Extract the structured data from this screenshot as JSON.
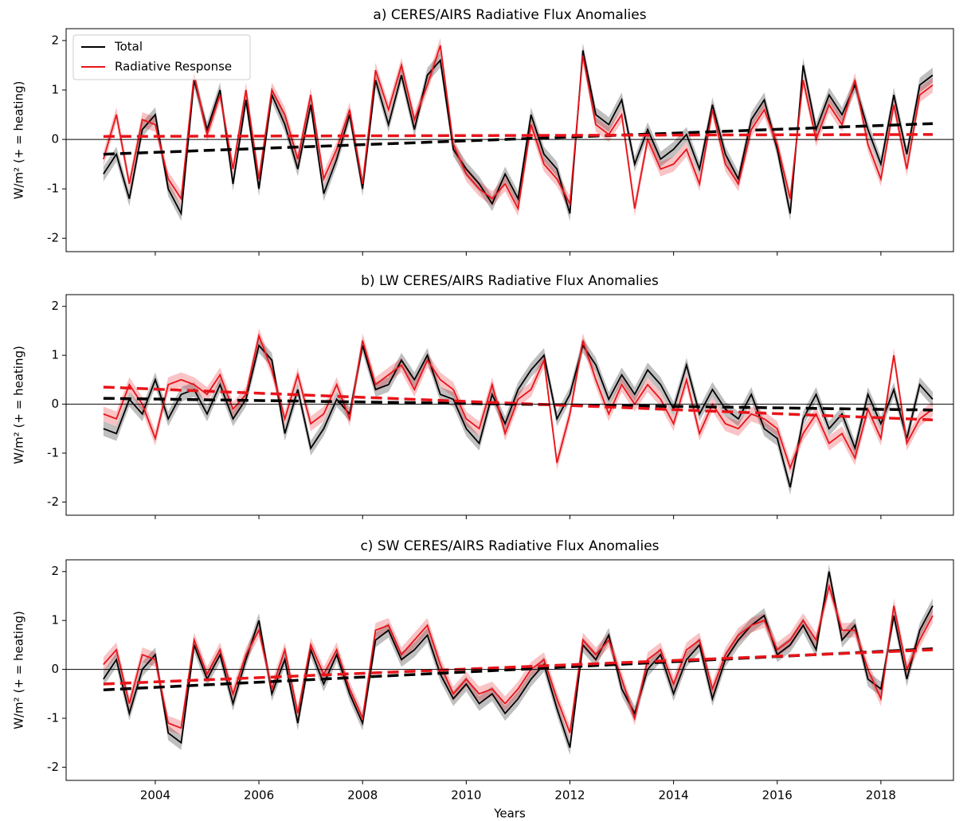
{
  "chart_data": [
    {
      "type": "line",
      "title": "a) CERES/AIRS Radiative Flux Anomalies",
      "ylabel": "W/m² (+ = heating)",
      "legend": "upper left",
      "x": [
        2003.0,
        2003.25,
        2003.5,
        2003.75,
        2004.0,
        2004.25,
        2004.5,
        2004.75,
        2005.0,
        2005.25,
        2005.5,
        2005.75,
        2006.0,
        2006.25,
        2006.5,
        2006.75,
        2007.0,
        2007.25,
        2007.5,
        2007.75,
        2008.0,
        2008.25,
        2008.5,
        2008.75,
        2009.0,
        2009.25,
        2009.5,
        2009.75,
        2010.0,
        2010.25,
        2010.5,
        2010.75,
        2011.0,
        2011.25,
        2011.5,
        2011.75,
        2012.0,
        2012.25,
        2012.5,
        2012.75,
        2013.0,
        2013.25,
        2013.5,
        2013.75,
        2014.0,
        2014.25,
        2014.5,
        2014.75,
        2015.0,
        2015.25,
        2015.5,
        2015.75,
        2016.0,
        2016.25,
        2016.5,
        2016.75,
        2017.0,
        2017.25,
        2017.5,
        2017.75,
        2018.0,
        2018.25,
        2018.5,
        2018.75,
        2019.0
      ],
      "series": [
        {
          "name": "Total",
          "color": "#000000",
          "spread": 0.15,
          "trend": [
            -0.3,
            0.32
          ],
          "values": [
            -0.7,
            -0.3,
            -1.2,
            0.2,
            0.5,
            -1.0,
            -1.5,
            1.2,
            0.2,
            1.0,
            -0.9,
            0.8,
            -1.0,
            0.9,
            0.3,
            -0.6,
            0.7,
            -1.1,
            -0.4,
            0.5,
            -1.0,
            1.2,
            0.3,
            1.3,
            0.2,
            1.3,
            1.6,
            -0.2,
            -0.6,
            -0.9,
            -1.3,
            -0.7,
            -1.2,
            0.5,
            -0.3,
            -0.6,
            -1.5,
            1.8,
            0.5,
            0.3,
            0.8,
            -0.5,
            0.2,
            -0.4,
            -0.2,
            0.1,
            -0.6,
            0.7,
            -0.3,
            -0.8,
            0.4,
            0.8,
            -0.2,
            -1.5,
            1.5,
            0.2,
            0.9,
            0.5,
            1.1,
            0.2,
            -0.5,
            0.9,
            -0.3,
            1.1,
            1.3
          ]
        },
        {
          "name": "Radiative Response",
          "color": "#e8141a",
          "spread": 0.15,
          "trend": [
            0.06,
            0.1
          ],
          "values": [
            -0.4,
            0.5,
            -0.9,
            0.4,
            0.3,
            -0.8,
            -1.2,
            1.3,
            0.1,
            0.9,
            -0.6,
            1.0,
            -0.8,
            1.0,
            0.5,
            -0.4,
            0.9,
            -0.8,
            -0.2,
            0.6,
            -0.9,
            1.4,
            0.6,
            1.5,
            0.4,
            1.1,
            1.9,
            -0.1,
            -0.7,
            -1.0,
            -1.2,
            -0.9,
            -1.4,
            0.3,
            -0.5,
            -0.8,
            -1.3,
            1.7,
            0.3,
            0.1,
            0.5,
            -1.4,
            0.0,
            -0.6,
            -0.5,
            -0.2,
            -0.9,
            0.6,
            -0.5,
            -0.9,
            0.2,
            0.6,
            -0.1,
            -1.2,
            1.2,
            0.0,
            0.7,
            0.3,
            1.2,
            -0.1,
            -0.8,
            0.7,
            -0.6,
            0.9,
            1.1
          ]
        }
      ],
      "trend_x": [
        2003.0,
        2019.0
      ],
      "hline": 0,
      "xlim": [
        2002.28,
        2019.4
      ],
      "xticks": [
        2004,
        2006,
        2008,
        2010,
        2012,
        2014,
        2016,
        2018
      ],
      "show_xtick_labels": false,
      "ylim": [
        -2.27,
        2.24
      ],
      "yticks": [
        -2,
        -1,
        0,
        1,
        2
      ]
    },
    {
      "type": "line",
      "title": "b) LW CERES/AIRS Radiative Flux Anomalies",
      "ylabel": "W/m² (+ = heating)",
      "x": [
        2003.0,
        2003.25,
        2003.5,
        2003.75,
        2004.0,
        2004.25,
        2004.5,
        2004.75,
        2005.0,
        2005.25,
        2005.5,
        2005.75,
        2006.0,
        2006.25,
        2006.5,
        2006.75,
        2007.0,
        2007.25,
        2007.5,
        2007.75,
        2008.0,
        2008.25,
        2008.5,
        2008.75,
        2009.0,
        2009.25,
        2009.5,
        2009.75,
        2010.0,
        2010.25,
        2010.5,
        2010.75,
        2011.0,
        2011.25,
        2011.5,
        2011.75,
        2012.0,
        2012.25,
        2012.5,
        2012.75,
        2013.0,
        2013.25,
        2013.5,
        2013.75,
        2014.0,
        2014.25,
        2014.5,
        2014.75,
        2015.0,
        2015.25,
        2015.5,
        2015.75,
        2016.0,
        2016.25,
        2016.5,
        2016.75,
        2017.0,
        2017.25,
        2017.5,
        2017.75,
        2018.0,
        2018.25,
        2018.5,
        2018.75,
        2019.0
      ],
      "series": [
        {
          "color": "#000000",
          "spread": 0.15,
          "trend": [
            0.12,
            -0.12
          ],
          "values": [
            -0.5,
            -0.6,
            0.1,
            -0.2,
            0.5,
            -0.3,
            0.2,
            0.3,
            -0.2,
            0.4,
            -0.3,
            0.1,
            1.2,
            0.9,
            -0.6,
            0.3,
            -0.9,
            -0.5,
            0.1,
            -0.2,
            1.2,
            0.3,
            0.4,
            0.9,
            0.5,
            1.0,
            0.2,
            0.1,
            -0.5,
            -0.8,
            0.2,
            -0.4,
            0.3,
            0.7,
            1.0,
            -0.3,
            0.2,
            1.2,
            0.8,
            0.1,
            0.6,
            0.2,
            0.7,
            0.4,
            -0.1,
            0.8,
            -0.2,
            0.3,
            -0.1,
            -0.3,
            0.2,
            -0.5,
            -0.7,
            -1.7,
            -0.3,
            0.2,
            -0.5,
            -0.2,
            -0.9,
            0.2,
            -0.4,
            0.3,
            -0.7,
            0.4,
            0.1
          ]
        },
        {
          "color": "#e8141a",
          "spread": 0.15,
          "trend": [
            0.35,
            -0.32
          ],
          "values": [
            -0.2,
            -0.3,
            0.4,
            0.0,
            -0.7,
            0.4,
            0.5,
            0.4,
            0.2,
            0.6,
            -0.1,
            0.2,
            1.4,
            0.7,
            -0.3,
            0.6,
            -0.4,
            -0.2,
            0.4,
            -0.3,
            1.3,
            0.4,
            0.6,
            0.8,
            0.3,
            0.9,
            0.5,
            0.3,
            -0.3,
            -0.5,
            0.4,
            -0.6,
            0.1,
            0.3,
            0.9,
            -1.2,
            -0.2,
            1.3,
            0.5,
            -0.2,
            0.4,
            0.0,
            0.4,
            0.1,
            -0.4,
            0.5,
            -0.6,
            0.0,
            -0.4,
            -0.5,
            -0.2,
            -0.3,
            -0.5,
            -1.3,
            -0.6,
            -0.2,
            -0.8,
            -0.6,
            -1.1,
            -0.1,
            -0.7,
            1.0,
            -0.8,
            -0.3,
            -0.1
          ]
        }
      ],
      "trend_x": [
        2003.0,
        2019.0
      ],
      "hline": 0,
      "xlim": [
        2002.28,
        2019.4
      ],
      "xticks": [
        2004,
        2006,
        2008,
        2010,
        2012,
        2014,
        2016,
        2018
      ],
      "show_xtick_labels": false,
      "ylim": [
        -2.27,
        2.24
      ],
      "yticks": [
        -2,
        -1,
        0,
        1,
        2
      ]
    },
    {
      "type": "line",
      "title": "c) SW CERES/AIRS Radiative Flux Anomalies",
      "ylabel": "W/m² (+ = heating)",
      "xlabel": "Years",
      "x": [
        2003.0,
        2003.25,
        2003.5,
        2003.75,
        2004.0,
        2004.25,
        2004.5,
        2004.75,
        2005.0,
        2005.25,
        2005.5,
        2005.75,
        2006.0,
        2006.25,
        2006.5,
        2006.75,
        2007.0,
        2007.25,
        2007.5,
        2007.75,
        2008.0,
        2008.25,
        2008.5,
        2008.75,
        2009.0,
        2009.25,
        2009.5,
        2009.75,
        2010.0,
        2010.25,
        2010.5,
        2010.75,
        2011.0,
        2011.25,
        2011.5,
        2011.75,
        2012.0,
        2012.25,
        2012.5,
        2012.75,
        2013.0,
        2013.25,
        2013.5,
        2013.75,
        2014.0,
        2014.25,
        2014.5,
        2014.75,
        2015.0,
        2015.25,
        2015.5,
        2015.75,
        2016.0,
        2016.25,
        2016.5,
        2016.75,
        2017.0,
        2017.25,
        2017.5,
        2017.75,
        2018.0,
        2018.25,
        2018.5,
        2018.75,
        2019.0
      ],
      "series": [
        {
          "color": "#000000",
          "spread": 0.15,
          "trend": [
            -0.42,
            0.42
          ],
          "values": [
            -0.2,
            0.2,
            -0.9,
            0.0,
            0.3,
            -1.3,
            -1.5,
            0.5,
            -0.2,
            0.3,
            -0.7,
            0.2,
            1.0,
            -0.5,
            0.2,
            -1.1,
            0.4,
            -0.3,
            0.3,
            -0.5,
            -1.1,
            0.6,
            0.8,
            0.2,
            0.4,
            0.7,
            -0.1,
            -0.6,
            -0.3,
            -0.7,
            -0.5,
            -0.9,
            -0.6,
            -0.2,
            0.1,
            -0.8,
            -1.6,
            0.5,
            0.2,
            0.7,
            -0.4,
            -0.9,
            0.0,
            0.3,
            -0.5,
            0.2,
            0.5,
            -0.6,
            0.2,
            0.6,
            0.9,
            1.1,
            0.3,
            0.5,
            0.9,
            0.4,
            2.0,
            0.6,
            0.9,
            -0.2,
            -0.4,
            1.1,
            -0.2,
            0.8,
            1.3
          ]
        },
        {
          "color": "#e8141a",
          "spread": 0.15,
          "trend": [
            -0.3,
            0.4
          ],
          "values": [
            0.1,
            0.4,
            -0.7,
            0.3,
            0.2,
            -1.1,
            -1.2,
            0.6,
            -0.1,
            0.4,
            -0.5,
            0.3,
            0.8,
            -0.4,
            0.4,
            -0.9,
            0.5,
            -0.1,
            0.4,
            -0.4,
            -1.0,
            0.8,
            0.9,
            0.3,
            0.6,
            0.9,
            0.1,
            -0.5,
            -0.2,
            -0.5,
            -0.4,
            -0.7,
            -0.4,
            0.0,
            0.2,
            -0.6,
            -1.3,
            0.6,
            0.3,
            0.6,
            -0.2,
            -1.0,
            0.2,
            0.4,
            -0.3,
            0.4,
            0.6,
            -0.4,
            0.3,
            0.7,
            0.9,
            1.0,
            0.4,
            0.6,
            1.0,
            0.6,
            1.7,
            0.8,
            0.8,
            0.0,
            -0.6,
            1.3,
            0.0,
            0.6,
            1.1
          ]
        }
      ],
      "trend_x": [
        2003.0,
        2019.0
      ],
      "hline": 0,
      "xlim": [
        2002.28,
        2019.4
      ],
      "xticks": [
        2004,
        2006,
        2008,
        2010,
        2012,
        2014,
        2016,
        2018
      ],
      "show_xtick_labels": true,
      "ylim": [
        -2.27,
        2.24
      ],
      "yticks": [
        -2,
        -1,
        0,
        1,
        2
      ]
    }
  ]
}
